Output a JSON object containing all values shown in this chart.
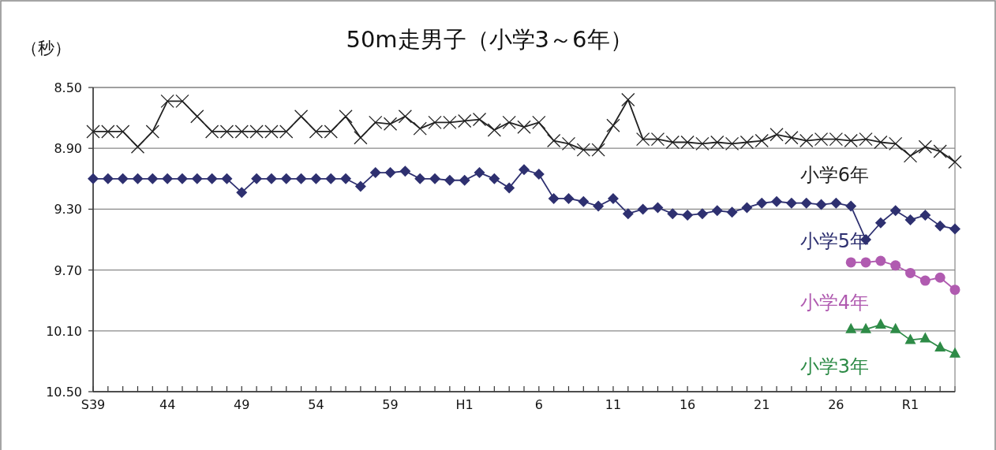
{
  "chart_data": {
    "type": "line",
    "title": "50m走男子（小学3～6年）",
    "ylabel": "（秒）",
    "categories": [
      "S39",
      null,
      null,
      null,
      null,
      "44",
      null,
      null,
      null,
      null,
      "49",
      null,
      null,
      null,
      null,
      "54",
      null,
      null,
      null,
      null,
      "59",
      null,
      null,
      null,
      null,
      "H1",
      null,
      null,
      null,
      null,
      "6",
      null,
      null,
      null,
      null,
      "11",
      null,
      null,
      null,
      null,
      "16",
      null,
      null,
      null,
      null,
      "21",
      null,
      null,
      null,
      null,
      "26",
      null,
      null,
      null,
      null,
      "R1",
      null,
      null,
      null
    ],
    "ylim": [
      10.5,
      8.5
    ],
    "yticks": [
      {
        "value": 8.5,
        "label": "8.50"
      },
      {
        "value": 8.9,
        "label": "8.90"
      },
      {
        "value": 9.3,
        "label": "9.30"
      },
      {
        "value": 9.7,
        "label": "9.70"
      },
      {
        "value": 10.1,
        "label": "10.10"
      },
      {
        "value": 10.5,
        "label": "10.50"
      }
    ],
    "grid": "y",
    "legend": false,
    "line_style": "solid",
    "series": [
      {
        "name": "小学6年",
        "color": "#222222",
        "marker": "cross",
        "values": [
          8.79,
          8.79,
          8.79,
          8.89,
          8.79,
          8.59,
          8.59,
          8.69,
          8.79,
          8.79,
          8.79,
          8.79,
          8.79,
          8.79,
          8.69,
          8.79,
          8.79,
          8.69,
          8.83,
          8.73,
          8.74,
          8.69,
          8.77,
          8.73,
          8.73,
          8.72,
          8.71,
          8.78,
          8.73,
          8.76,
          8.73,
          8.85,
          8.87,
          8.91,
          8.91,
          8.75,
          8.58,
          8.84,
          8.84,
          8.86,
          8.86,
          8.87,
          8.86,
          8.87,
          8.86,
          8.85,
          8.81,
          8.83,
          8.85,
          8.84,
          8.84,
          8.85,
          8.84,
          8.86,
          8.87,
          8.95,
          8.89,
          8.92,
          8.99
        ]
      },
      {
        "name": "小学5年",
        "color": "#2e3070",
        "marker": "diamond",
        "values": [
          9.1,
          9.1,
          9.1,
          9.1,
          9.1,
          9.1,
          9.1,
          9.1,
          9.1,
          9.1,
          9.19,
          9.1,
          9.1,
          9.1,
          9.1,
          9.1,
          9.1,
          9.1,
          9.15,
          9.06,
          9.06,
          9.05,
          9.1,
          9.1,
          9.11,
          9.11,
          9.06,
          9.1,
          9.16,
          9.04,
          9.07,
          9.23,
          9.23,
          9.25,
          9.28,
          9.23,
          9.33,
          9.3,
          9.29,
          9.33,
          9.34,
          9.33,
          9.31,
          9.32,
          9.29,
          9.26,
          9.25,
          9.26,
          9.26,
          9.27,
          9.26,
          9.28,
          9.5,
          9.39,
          9.31,
          9.37,
          9.34,
          9.41,
          9.43
        ]
      },
      {
        "name": "小学4年",
        "color": "#b05bb0",
        "marker": "circle",
        "values": [
          null,
          null,
          null,
          null,
          null,
          null,
          null,
          null,
          null,
          null,
          null,
          null,
          null,
          null,
          null,
          null,
          null,
          null,
          null,
          null,
          null,
          null,
          null,
          null,
          null,
          null,
          null,
          null,
          null,
          null,
          null,
          null,
          null,
          null,
          null,
          null,
          null,
          null,
          null,
          null,
          null,
          null,
          null,
          null,
          null,
          null,
          null,
          null,
          null,
          null,
          null,
          9.65,
          9.65,
          9.64,
          9.67,
          9.72,
          9.77,
          9.75,
          9.83
        ]
      },
      {
        "name": "小学3年",
        "color": "#2e8b47",
        "marker": "triangle",
        "values": [
          null,
          null,
          null,
          null,
          null,
          null,
          null,
          null,
          null,
          null,
          null,
          null,
          null,
          null,
          null,
          null,
          null,
          null,
          null,
          null,
          null,
          null,
          null,
          null,
          null,
          null,
          null,
          null,
          null,
          null,
          null,
          null,
          null,
          null,
          null,
          null,
          null,
          null,
          null,
          null,
          null,
          null,
          null,
          null,
          null,
          null,
          null,
          null,
          null,
          null,
          null,
          10.09,
          10.09,
          10.06,
          10.09,
          10.16,
          10.15,
          10.21,
          10.25
        ]
      }
    ]
  }
}
